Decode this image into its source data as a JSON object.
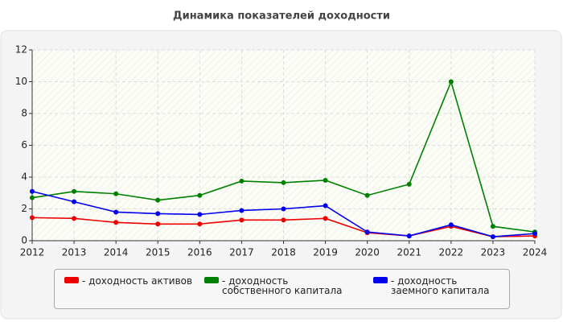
{
  "chart_data": {
    "type": "line",
    "title": "Динамика показателей доходности",
    "x": [
      2012,
      2013,
      2014,
      2015,
      2016,
      2017,
      2018,
      2019,
      2020,
      2021,
      2022,
      2023,
      2024
    ],
    "series": [
      {
        "name": "- доходность активов",
        "color": "#ee0000",
        "values": [
          1.45,
          1.4,
          1.15,
          1.05,
          1.05,
          1.3,
          1.3,
          1.4,
          0.5,
          0.3,
          0.9,
          0.25,
          0.3
        ]
      },
      {
        "name": "- доходность собственного капитала",
        "color": "#008000",
        "values": [
          2.7,
          3.1,
          2.95,
          2.55,
          2.85,
          3.75,
          3.65,
          3.8,
          2.85,
          3.55,
          10.0,
          0.9,
          0.55
        ]
      },
      {
        "name": "- доходность заемного капитала",
        "color": "#0000ee",
        "values": [
          3.1,
          2.45,
          1.8,
          1.7,
          1.65,
          1.9,
          2.0,
          2.2,
          0.55,
          0.3,
          1.0,
          0.25,
          0.45
        ]
      }
    ],
    "xlim": [
      2012,
      2024
    ],
    "xticks": [
      2012,
      2013,
      2014,
      2015,
      2016,
      2017,
      2018,
      2019,
      2020,
      2021,
      2022,
      2023,
      2024
    ],
    "ylim": [
      0,
      12
    ],
    "yticks": [
      0,
      2,
      4,
      6,
      8,
      10,
      12
    ],
    "grid": true
  }
}
